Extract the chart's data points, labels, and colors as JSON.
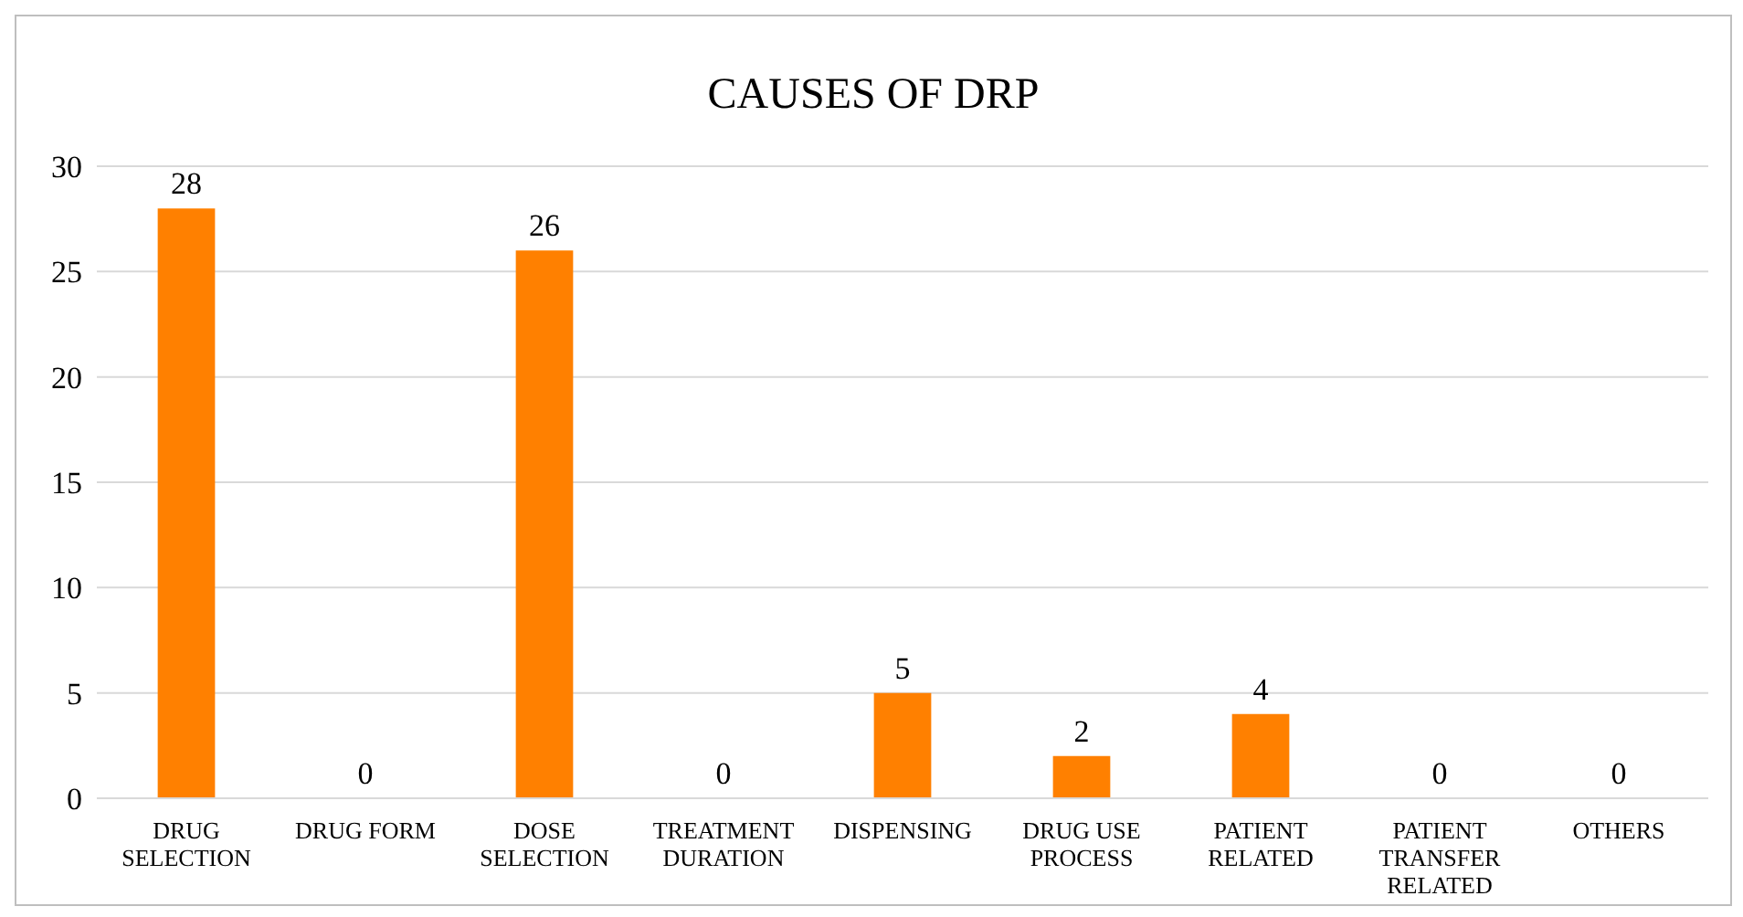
{
  "chart_data": {
    "type": "bar",
    "title": "CAUSES OF DRP",
    "categories": [
      "DRUG SELECTION",
      "DRUG FORM",
      "DOSE SELECTION",
      "TREATMENT DURATION",
      "DISPENSING",
      "DRUG USE PROCESS",
      "PATIENT RELATED",
      "PATIENT TRANSFER RELATED",
      "OTHERS"
    ],
    "values": [
      28,
      0,
      26,
      0,
      5,
      2,
      4,
      0,
      0
    ],
    "color": "#ff8000",
    "ylim": [
      0,
      30
    ],
    "yticks": [
      0,
      5,
      10,
      15,
      20,
      25,
      30
    ],
    "grid": "y",
    "data_labels": true
  }
}
